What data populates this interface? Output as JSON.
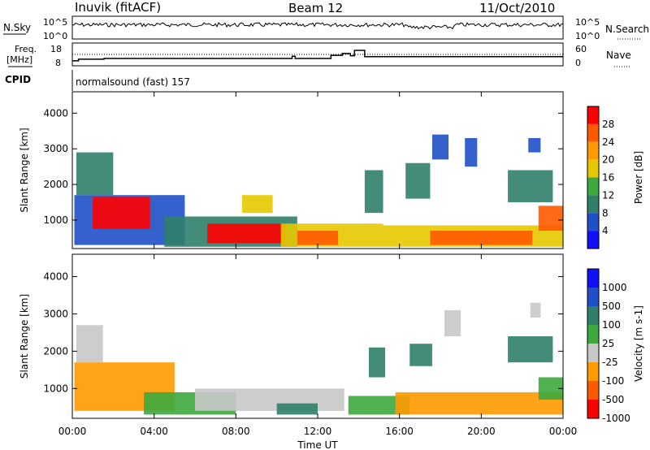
{
  "header": {
    "station": "Inuvik (fitACF)",
    "beam": "Beam 12",
    "date": "11/Oct/2010"
  },
  "top_panels": {
    "nsky_label": "N.Sky",
    "nsky_ticks": [
      "10^5",
      "10^0"
    ],
    "nsearch_label": "N.Search",
    "nsearch_ticks": [
      "10^5",
      "10^0"
    ],
    "freq_label_1": "Freq.",
    "freq_label_2": "[MHz]",
    "freq_ticks": [
      "18",
      "8"
    ],
    "nave_label": "Nave",
    "nave_ticks": [
      "60",
      "0"
    ],
    "cpid_label": "CPID",
    "cpid_text": "normalsound (fast) 157",
    "freq_steps": [
      {
        "t": 0,
        "mhz": 10.2
      },
      {
        "t": 0.3,
        "mhz": 10.9
      },
      {
        "t": 1.5,
        "mhz": 10.9
      },
      {
        "t": 1.55,
        "mhz": 11.2
      },
      {
        "t": 10.7,
        "mhz": 11.2
      },
      {
        "t": 10.75,
        "mhz": 12.2
      },
      {
        "t": 10.9,
        "mhz": 11.2
      },
      {
        "t": 12.6,
        "mhz": 11.2
      },
      {
        "t": 12.65,
        "mhz": 12.6
      },
      {
        "t": 13.2,
        "mhz": 13.4
      },
      {
        "t": 13.6,
        "mhz": 12.4
      },
      {
        "t": 13.8,
        "mhz": 14.8
      },
      {
        "t": 14.3,
        "mhz": 12.0
      },
      {
        "t": 24,
        "mhz": 12.0
      }
    ]
  },
  "chart_data": [
    {
      "type": "heatmap",
      "title": "",
      "xlabel": "Time UT",
      "ylabel": "Slant Range [km]",
      "xlim": [
        "00:00",
        "00:00"
      ],
      "x_ticks": [
        "00:00",
        "04:00",
        "08:00",
        "12:00",
        "16:00",
        "20:00",
        "00:00"
      ],
      "ylim": [
        200,
        4600
      ],
      "y_ticks": [
        1000,
        2000,
        3000,
        4000
      ],
      "colorbar": {
        "label": "Power [dB]",
        "ticks": [
          "28",
          "24",
          "20",
          "16",
          "12",
          "8",
          "4"
        ],
        "colors": [
          "#ff0000",
          "#ff5a00",
          "#ff9a00",
          "#e6c800",
          "#3da83d",
          "#2f7f6a",
          "#1f50c8",
          "#1010ff"
        ]
      },
      "regions": [
        {
          "t0": 0.1,
          "t1": 5.5,
          "r0": 300,
          "r1": 1700,
          "level": 6
        },
        {
          "t0": 1.0,
          "t1": 3.8,
          "r0": 750,
          "r1": 1650,
          "level": 0
        },
        {
          "t0": 4.5,
          "t1": 11.0,
          "r0": 250,
          "r1": 1100,
          "level": 5
        },
        {
          "t0": 6.6,
          "t1": 10.4,
          "r0": 350,
          "r1": 900,
          "level": 0
        },
        {
          "t0": 10.2,
          "t1": 15.2,
          "r0": 250,
          "r1": 900,
          "level": 3
        },
        {
          "t0": 11.0,
          "t1": 13.0,
          "r0": 300,
          "r1": 700,
          "level": 1
        },
        {
          "t0": 15.2,
          "t1": 24.0,
          "r0": 250,
          "r1": 850,
          "level": 3
        },
        {
          "t0": 17.5,
          "t1": 22.5,
          "r0": 300,
          "r1": 700,
          "level": 1
        },
        {
          "t0": 22.8,
          "t1": 24.0,
          "r0": 700,
          "r1": 1400,
          "level": 1
        },
        {
          "t0": 0.2,
          "t1": 2.0,
          "r0": 1700,
          "r1": 2900,
          "level": 5
        },
        {
          "t0": 8.3,
          "t1": 9.8,
          "r0": 1200,
          "r1": 1700,
          "level": 3
        },
        {
          "t0": 14.3,
          "t1": 15.2,
          "r0": 1200,
          "r1": 2400,
          "level": 5
        },
        {
          "t0": 16.3,
          "t1": 17.5,
          "r0": 1600,
          "r1": 2600,
          "level": 5
        },
        {
          "t0": 17.6,
          "t1": 18.4,
          "r0": 2700,
          "r1": 3400,
          "level": 6
        },
        {
          "t0": 19.2,
          "t1": 19.8,
          "r0": 2500,
          "r1": 3300,
          "level": 6
        },
        {
          "t0": 21.3,
          "t1": 23.5,
          "r0": 1500,
          "r1": 2400,
          "level": 5
        },
        {
          "t0": 22.3,
          "t1": 22.9,
          "r0": 2900,
          "r1": 3300,
          "level": 6
        }
      ]
    },
    {
      "type": "heatmap",
      "title": "",
      "xlabel": "Time UT",
      "ylabel": "Slant Range [km]",
      "xlim": [
        "00:00",
        "00:00"
      ],
      "x_ticks": [
        "00:00",
        "04:00",
        "08:00",
        "12:00",
        "16:00",
        "20:00",
        "00:00"
      ],
      "ylim": [
        200,
        4600
      ],
      "y_ticks": [
        1000,
        2000,
        3000,
        4000
      ],
      "colorbar": {
        "label": "Velocity [m s-1]",
        "ticks": [
          "1000",
          "500",
          "100",
          "25",
          "-25",
          "-100",
          "-500",
          "-1000"
        ],
        "colors": [
          "#1010ff",
          "#1f50c8",
          "#2f7f6a",
          "#3da83d",
          "#c8c8c8",
          "#ff9a00",
          "#ff5a00",
          "#ff0000"
        ]
      },
      "regions": [
        {
          "t0": 0.1,
          "t1": 5.0,
          "r0": 400,
          "r1": 1700,
          "level": 5
        },
        {
          "t0": 0.2,
          "t1": 1.5,
          "r0": 1700,
          "r1": 2700,
          "level": 4
        },
        {
          "t0": 3.5,
          "t1": 8.0,
          "r0": 300,
          "r1": 900,
          "level": 3
        },
        {
          "t0": 6.0,
          "t1": 13.3,
          "r0": 400,
          "r1": 1000,
          "level": 4
        },
        {
          "t0": 10.0,
          "t1": 12.0,
          "r0": 300,
          "r1": 600,
          "level": 2
        },
        {
          "t0": 13.5,
          "t1": 16.5,
          "r0": 300,
          "r1": 800,
          "level": 3
        },
        {
          "t0": 15.8,
          "t1": 24.0,
          "r0": 300,
          "r1": 900,
          "level": 5
        },
        {
          "t0": 22.8,
          "t1": 24.0,
          "r0": 700,
          "r1": 1300,
          "level": 3
        },
        {
          "t0": 14.5,
          "t1": 15.3,
          "r0": 1300,
          "r1": 2100,
          "level": 2
        },
        {
          "t0": 16.5,
          "t1": 17.6,
          "r0": 1600,
          "r1": 2200,
          "level": 2
        },
        {
          "t0": 18.2,
          "t1": 19.0,
          "r0": 2400,
          "r1": 3100,
          "level": 4
        },
        {
          "t0": 21.3,
          "t1": 23.5,
          "r0": 1700,
          "r1": 2400,
          "level": 2
        },
        {
          "t0": 22.4,
          "t1": 22.9,
          "r0": 2900,
          "r1": 3300,
          "level": 4
        }
      ]
    }
  ]
}
